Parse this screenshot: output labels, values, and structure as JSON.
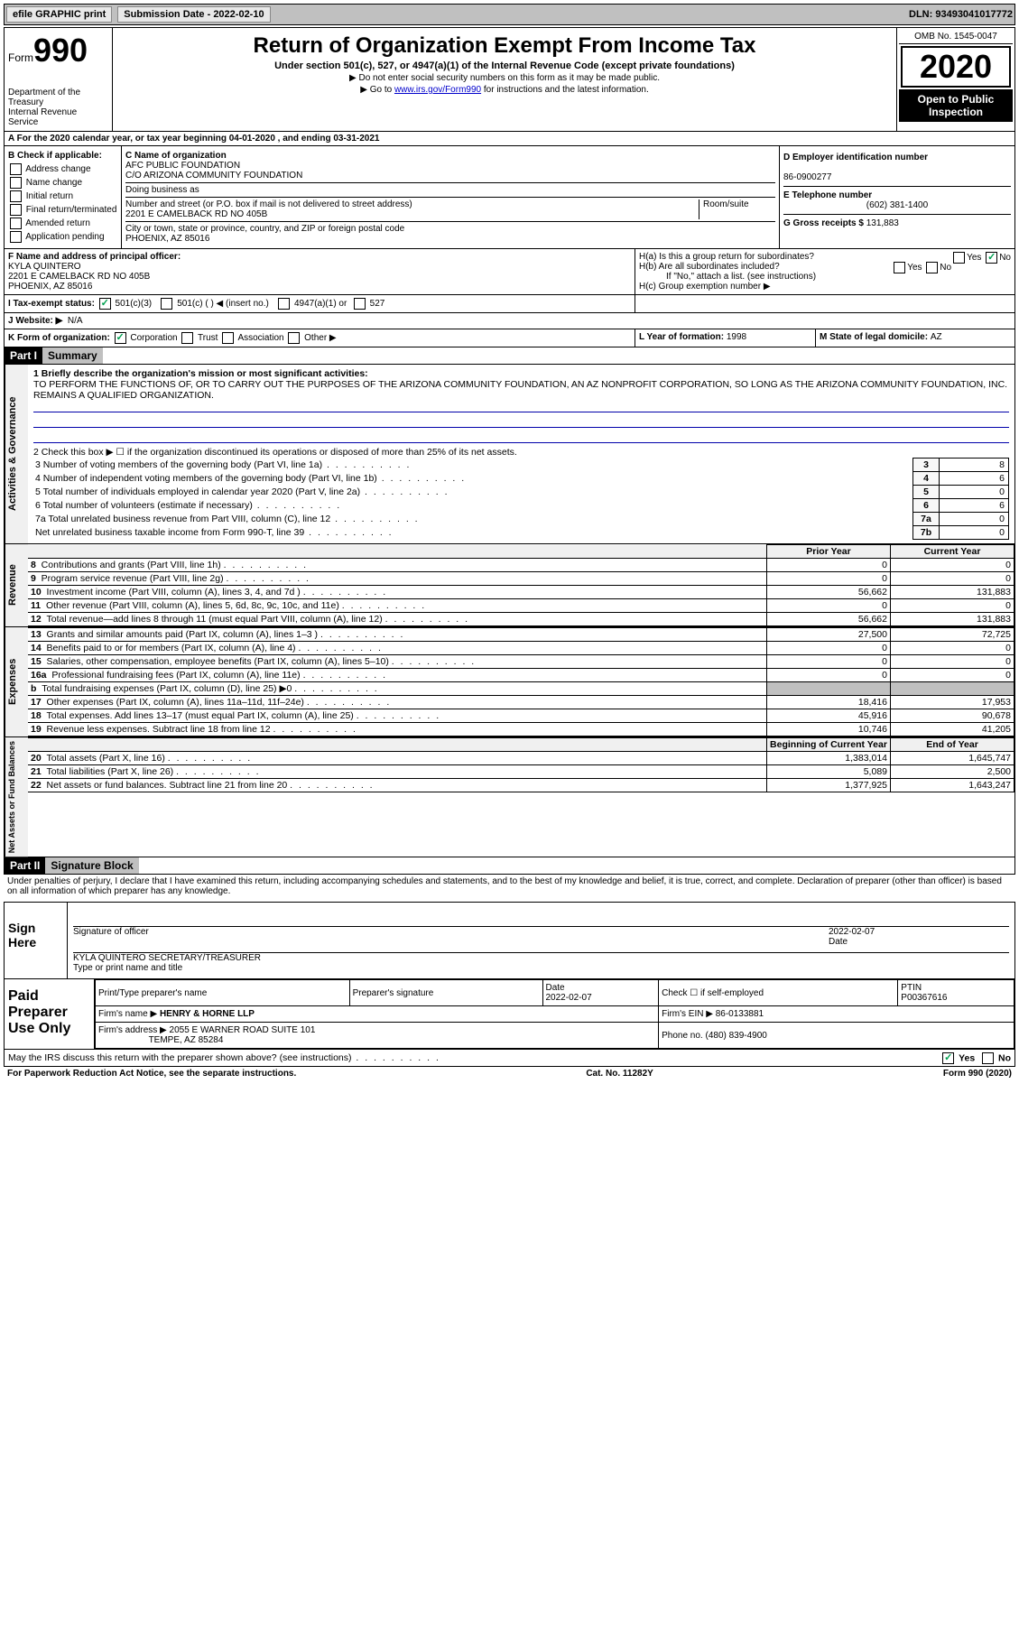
{
  "topbar": {
    "efile": "efile GRAPHIC print",
    "submission": "Submission Date - 2022-02-10",
    "dln": "DLN: 93493041017772"
  },
  "header": {
    "form_prefix": "Form",
    "form_number": "990",
    "dept": "Department of the Treasury\nInternal Revenue Service",
    "title": "Return of Organization Exempt From Income Tax",
    "subtitle": "Under section 501(c), 527, or 4947(a)(1) of the Internal Revenue Code (except private foundations)",
    "note1": "▶ Do not enter social security numbers on this form as it may be made public.",
    "note2_prefix": "▶ Go to ",
    "note2_link": "www.irs.gov/Form990",
    "note2_suffix": " for instructions and the latest information.",
    "omb": "OMB No. 1545-0047",
    "year": "2020",
    "inspection": "Open to Public Inspection"
  },
  "period": {
    "text_a": "A For the 2020 calendar year, or tax year beginning ",
    "begin": "04-01-2020",
    "text_b": "  , and ending ",
    "end": "03-31-2021"
  },
  "checkboxes": {
    "heading": "B Check if applicable:",
    "items": [
      "Address change",
      "Name change",
      "Initial return",
      "Final return/terminated",
      "Amended return",
      "Application pending"
    ]
  },
  "org": {
    "c_label": "C Name of organization",
    "name1": "AFC PUBLIC FOUNDATION",
    "name2": "C/O ARIZONA COMMUNITY FOUNDATION",
    "dba_label": "Doing business as",
    "addr_label": "Number and street (or P.O. box if mail is not delivered to street address)",
    "room_label": "Room/suite",
    "street": "2201 E CAMELBACK RD NO 405B",
    "city_label": "City or town, state or province, country, and ZIP or foreign postal code",
    "city": "PHOENIX, AZ  85016"
  },
  "ein": {
    "d_label": "D Employer identification number",
    "value": "86-0900277",
    "e_label": "E Telephone number",
    "phone": "(602) 381-1400",
    "g_label": "G Gross receipts $ ",
    "gross": "131,883"
  },
  "officer": {
    "f_label": "F  Name and address of principal officer:",
    "name": "KYLA QUINTERO",
    "addr1": "2201 E CAMELBACK RD NO 405B",
    "addr2": "PHOENIX, AZ  85016"
  },
  "group": {
    "ha": "H(a)  Is this a group return for subordinates?",
    "hb": "H(b)  Are all subordinates included?",
    "hb_note": "If \"No,\" attach a list. (see instructions)",
    "hc": "H(c)  Group exemption number ▶",
    "yes": "Yes",
    "no": "No"
  },
  "status": {
    "i_label": "I   Tax-exempt status:",
    "opt1": "501(c)(3)",
    "opt2": "501(c) (  ) ◀ (insert no.)",
    "opt3": "4947(a)(1) or",
    "opt4": "527",
    "j_label": "J   Website: ▶",
    "website": "N/A"
  },
  "orgtype": {
    "k_label": "K Form of organization:",
    "corp": "Corporation",
    "trust": "Trust",
    "assoc": "Association",
    "other": "Other ▶",
    "l_label": "L Year of formation: ",
    "l_value": "1998",
    "m_label": "M State of legal domicile: ",
    "m_value": "AZ"
  },
  "part1": {
    "header": "Part I",
    "title": "Summary"
  },
  "mission": {
    "line1_label": "1  Briefly describe the organization's mission or most significant activities:",
    "text": "TO PERFORM THE FUNCTIONS OF, OR TO CARRY OUT THE PURPOSES OF THE ARIZONA COMMUNITY FOUNDATION, AN AZ NONPROFIT CORPORATION, SO LONG AS THE ARIZONA COMMUNITY FOUNDATION, INC. REMAINS A QUALIFIED ORGANIZATION."
  },
  "gov_side": "Activities & Governance",
  "gov_rows": {
    "r2": "2    Check this box ▶ ☐  if the organization discontinued its operations or disposed of more than 25% of its net assets.",
    "r3": {
      "label": "3    Number of voting members of the governing body (Part VI, line 1a)",
      "num": "3",
      "val": "8"
    },
    "r4": {
      "label": "4    Number of independent voting members of the governing body (Part VI, line 1b)",
      "num": "4",
      "val": "6"
    },
    "r5": {
      "label": "5    Total number of individuals employed in calendar year 2020 (Part V, line 2a)",
      "num": "5",
      "val": "0"
    },
    "r6": {
      "label": "6    Total number of volunteers (estimate if necessary)",
      "num": "6",
      "val": "6"
    },
    "r7a": {
      "label": "7a  Total unrelated business revenue from Part VIII, column (C), line 12",
      "num": "7a",
      "val": "0"
    },
    "r7b": {
      "label": "     Net unrelated business taxable income from Form 990-T, line 39",
      "num": "7b",
      "val": "0"
    }
  },
  "rev_side": "Revenue",
  "exp_side": "Expenses",
  "net_side": "Net Assets or Fund Balances",
  "fin_headers": {
    "prior": "Prior Year",
    "current": "Current Year",
    "boy": "Beginning of Current Year",
    "eoy": "End of Year"
  },
  "rev_rows": [
    {
      "n": "8",
      "label": "Contributions and grants (Part VIII, line 1h)",
      "py": "0",
      "cy": "0"
    },
    {
      "n": "9",
      "label": "Program service revenue (Part VIII, line 2g)",
      "py": "0",
      "cy": "0"
    },
    {
      "n": "10",
      "label": "Investment income (Part VIII, column (A), lines 3, 4, and 7d )",
      "py": "56,662",
      "cy": "131,883"
    },
    {
      "n": "11",
      "label": "Other revenue (Part VIII, column (A), lines 5, 6d, 8c, 9c, 10c, and 11e)",
      "py": "0",
      "cy": "0"
    },
    {
      "n": "12",
      "label": "Total revenue—add lines 8 through 11 (must equal Part VIII, column (A), line 12)",
      "py": "56,662",
      "cy": "131,883"
    }
  ],
  "exp_rows": [
    {
      "n": "13",
      "label": "Grants and similar amounts paid (Part IX, column (A), lines 1–3 )",
      "py": "27,500",
      "cy": "72,725"
    },
    {
      "n": "14",
      "label": "Benefits paid to or for members (Part IX, column (A), line 4)",
      "py": "0",
      "cy": "0"
    },
    {
      "n": "15",
      "label": "Salaries, other compensation, employee benefits (Part IX, column (A), lines 5–10)",
      "py": "0",
      "cy": "0"
    },
    {
      "n": "16a",
      "label": "Professional fundraising fees (Part IX, column (A), line 11e)",
      "py": "0",
      "cy": "0"
    },
    {
      "n": "b",
      "label": "Total fundraising expenses (Part IX, column (D), line 25) ▶0",
      "py": "",
      "cy": "",
      "shaded": true
    },
    {
      "n": "17",
      "label": "Other expenses (Part IX, column (A), lines 11a–11d, 11f–24e)",
      "py": "18,416",
      "cy": "17,953"
    },
    {
      "n": "18",
      "label": "Total expenses. Add lines 13–17 (must equal Part IX, column (A), line 25)",
      "py": "45,916",
      "cy": "90,678"
    },
    {
      "n": "19",
      "label": "Revenue less expenses. Subtract line 18 from line 12",
      "py": "10,746",
      "cy": "41,205"
    }
  ],
  "net_rows": [
    {
      "n": "20",
      "label": "Total assets (Part X, line 16)",
      "py": "1,383,014",
      "cy": "1,645,747"
    },
    {
      "n": "21",
      "label": "Total liabilities (Part X, line 26)",
      "py": "5,089",
      "cy": "2,500"
    },
    {
      "n": "22",
      "label": "Net assets or fund balances. Subtract line 21 from line 20",
      "py": "1,377,925",
      "cy": "1,643,247"
    }
  ],
  "part2": {
    "header": "Part II",
    "title": "Signature Block"
  },
  "declaration": "Under penalties of perjury, I declare that I have examined this return, including accompanying schedules and statements, and to the best of my knowledge and belief, it is true, correct, and complete. Declaration of preparer (other than officer) is based on all information of which preparer has any knowledge.",
  "sign": {
    "side": "Sign Here",
    "sig_label": "Signature of officer",
    "date_label": "Date",
    "date": "2022-02-07",
    "name": "KYLA QUINTERO  SECRETARY/TREASURER",
    "name_label": "Type or print name and title"
  },
  "preparer": {
    "side": "Paid Preparer Use Only",
    "h1": "Print/Type preparer's name",
    "h2": "Preparer's signature",
    "h3": "Date",
    "date": "2022-02-07",
    "h4": "Check ☐ if self-employed",
    "h5": "PTIN",
    "ptin": "P00367616",
    "firm_label": "Firm's name    ▶",
    "firm": "HENRY & HORNE LLP",
    "ein_label": "Firm's EIN ▶",
    "ein": "86-0133881",
    "addr_label": "Firm's address ▶",
    "addr": "2055 E WARNER ROAD SUITE 101",
    "addr2": "TEMPE, AZ  85284",
    "phone_label": "Phone no. ",
    "phone": "(480) 839-4900"
  },
  "discuss": {
    "text": "May the IRS discuss this return with the preparer shown above? (see instructions)",
    "yes": "Yes",
    "no": "No"
  },
  "footer": {
    "left": "For Paperwork Reduction Act Notice, see the separate instructions.",
    "mid": "Cat. No. 11282Y",
    "right": "Form 990 (2020)"
  }
}
